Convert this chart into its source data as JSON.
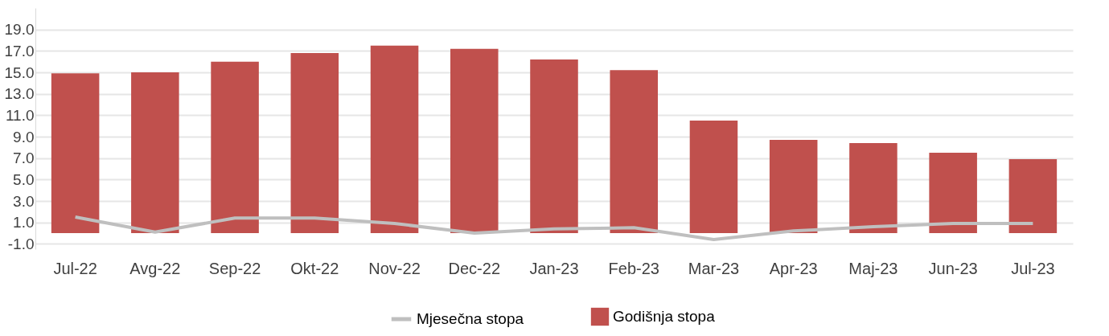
{
  "chart_data": {
    "type": "bar",
    "categories": [
      "Jul-22",
      "Avg-22",
      "Sep-22",
      "Okt-22",
      "Nov-22",
      "Dec-22",
      "Jan-23",
      "Feb-23",
      "Mar-23",
      "Apr-23",
      "Maj-23",
      "Jun-23",
      "Jul-23"
    ],
    "series": [
      {
        "name": "Godišnja stopa",
        "color": "#c0504d",
        "values": [
          14.9,
          15.0,
          16.0,
          16.8,
          17.5,
          17.2,
          16.2,
          15.2,
          10.5,
          8.7,
          8.4,
          7.5,
          6.9
        ]
      },
      {
        "name": "Mjesečna stopa",
        "type": "line",
        "color": "#bfbfbf",
        "values": [
          1.5,
          0.1,
          1.4,
          1.4,
          0.9,
          0.0,
          0.4,
          0.5,
          -0.6,
          0.2,
          0.6,
          0.9,
          0.9
        ]
      }
    ],
    "ylim": [
      -1.5,
      21
    ],
    "yticks": [
      {
        "value": -1,
        "label": "-1.0"
      },
      {
        "value": 1,
        "label": "1.0"
      },
      {
        "value": 3,
        "label": "3.0"
      },
      {
        "value": 5,
        "label": "5.0"
      },
      {
        "value": 7,
        "label": "7.0"
      },
      {
        "value": 9,
        "label": "9.0"
      },
      {
        "value": 11,
        "label": "11.0"
      },
      {
        "value": 13,
        "label": "13.0"
      },
      {
        "value": 15,
        "label": "15.0"
      },
      {
        "value": 17,
        "label": "17.0"
      },
      {
        "value": 19,
        "label": "19.0"
      }
    ],
    "grid": "y",
    "legend": "bottom",
    "marker": "none",
    "line_style": "solid"
  }
}
